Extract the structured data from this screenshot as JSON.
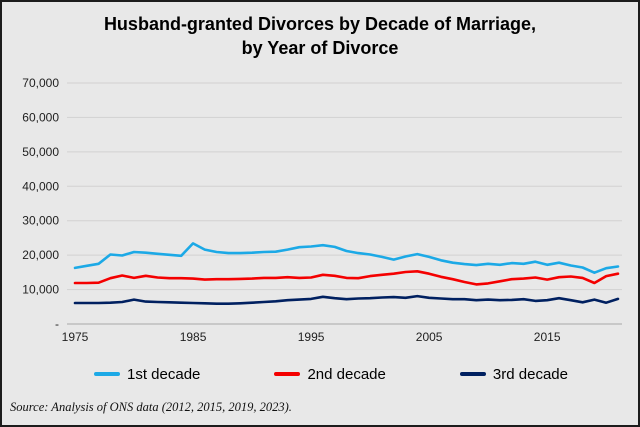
{
  "title": {
    "line1": "Husband-granted Divorces by Decade of Marriage,",
    "line2": "by Year of Divorce"
  },
  "source": {
    "text": "Source: Analysis of ONS data (2012, 2015, 2019, 2023)."
  },
  "colors": {
    "background": "#e8e8e8",
    "border": "#1c1c1c",
    "gridline": "#d2d1d1",
    "axis_line": "#a8a8a8",
    "tick_text": "#1f1f1f",
    "series_1st": "#1ca9e6",
    "series_2nd": "#f40000",
    "series_3rd": "#002060"
  },
  "chart_data": {
    "type": "line",
    "title": "Husband-granted Divorces by Decade of Marriage, by Year of Divorce",
    "xlabel": "",
    "ylabel": "",
    "ylim": [
      0,
      70000
    ],
    "grid": true,
    "legend_position": "bottom",
    "x": [
      1975,
      1976,
      1977,
      1978,
      1979,
      1980,
      1981,
      1982,
      1983,
      1984,
      1985,
      1986,
      1987,
      1988,
      1989,
      1990,
      1991,
      1992,
      1993,
      1994,
      1995,
      1996,
      1997,
      1998,
      1999,
      2000,
      2001,
      2002,
      2003,
      2004,
      2005,
      2006,
      2007,
      2008,
      2009,
      2010,
      2011,
      2012,
      2013,
      2014,
      2015,
      2016,
      2017,
      2018,
      2019,
      2020,
      2021
    ],
    "xticks": [
      1975,
      1985,
      1995,
      2005,
      2015
    ],
    "yticks": [
      {
        "value": 0,
        "label": "-"
      },
      {
        "value": 10000,
        "label": "10,000"
      },
      {
        "value": 20000,
        "label": "20,000"
      },
      {
        "value": 30000,
        "label": "30,000"
      },
      {
        "value": 40000,
        "label": "40,000"
      },
      {
        "value": 50000,
        "label": "50,000"
      },
      {
        "value": 60000,
        "label": "60,000"
      },
      {
        "value": 70000,
        "label": "70,000"
      }
    ],
    "series": [
      {
        "name": "1st decade",
        "color": "#1ca9e6",
        "values": [
          16300,
          16900,
          17500,
          20200,
          19900,
          20900,
          20700,
          20400,
          20100,
          19800,
          23400,
          21600,
          20900,
          20600,
          20600,
          20700,
          20900,
          21000,
          21600,
          22300,
          22500,
          22900,
          22400,
          21200,
          20600,
          20200,
          19500,
          18700,
          19600,
          20300,
          19500,
          18500,
          17800,
          17400,
          17100,
          17500,
          17200,
          17700,
          17500,
          18100,
          17200,
          17800,
          17000,
          16400,
          14900,
          16200,
          16700
        ]
      },
      {
        "name": "2nd decade",
        "color": "#f40000",
        "values": [
          11900,
          11900,
          12000,
          13300,
          14100,
          13400,
          14000,
          13500,
          13300,
          13300,
          13200,
          12900,
          13000,
          13000,
          13100,
          13200,
          13400,
          13400,
          13600,
          13400,
          13500,
          14300,
          14000,
          13400,
          13300,
          13900,
          14300,
          14600,
          15100,
          15300,
          14600,
          13700,
          13000,
          12200,
          11500,
          11800,
          12400,
          13000,
          13200,
          13500,
          12900,
          13600,
          13800,
          13400,
          11900,
          13900,
          14600
        ]
      },
      {
        "name": "3rd decade",
        "color": "#002060",
        "values": [
          6100,
          6100,
          6100,
          6200,
          6400,
          7100,
          6500,
          6400,
          6300,
          6200,
          6100,
          6000,
          5900,
          5900,
          6000,
          6200,
          6400,
          6600,
          6900,
          7100,
          7300,
          7900,
          7500,
          7200,
          7400,
          7500,
          7700,
          7800,
          7600,
          8100,
          7600,
          7400,
          7200,
          7200,
          6900,
          7100,
          6900,
          7000,
          7200,
          6700,
          6900,
          7500,
          6900,
          6300,
          7100,
          6200,
          7300
        ]
      }
    ]
  }
}
